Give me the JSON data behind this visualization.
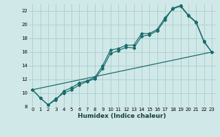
{
  "title": "",
  "xlabel": "Humidex (Indice chaleur)",
  "background_color": "#d0e8e8",
  "grid_color": "#b0d0d0",
  "line_color": "#1a6b6b",
  "xlim": [
    -0.5,
    23.5
  ],
  "ylim": [
    8,
    23
  ],
  "xticks": [
    0,
    1,
    2,
    3,
    4,
    5,
    6,
    7,
    8,
    9,
    10,
    11,
    12,
    13,
    14,
    15,
    16,
    17,
    18,
    19,
    20,
    21,
    22,
    23
  ],
  "yticks": [
    8,
    10,
    12,
    14,
    16,
    18,
    20,
    22
  ],
  "series1_x": [
    0,
    1,
    2,
    3,
    4,
    5,
    6,
    7,
    8,
    9,
    10,
    11,
    12,
    13,
    14,
    15,
    16,
    17,
    18,
    19,
    20,
    21,
    22,
    23
  ],
  "series1_y": [
    10.5,
    9.3,
    8.3,
    9.0,
    10.3,
    10.8,
    11.5,
    11.8,
    12.3,
    14.0,
    16.3,
    16.5,
    17.0,
    17.0,
    18.7,
    18.7,
    19.3,
    21.0,
    22.3,
    22.7,
    21.3,
    20.3,
    17.5,
    16.0
  ],
  "series2_x": [
    0,
    1,
    2,
    3,
    4,
    5,
    6,
    7,
    8,
    9,
    10,
    11,
    12,
    13,
    14,
    15,
    16,
    17,
    18,
    19,
    20,
    21,
    22,
    23
  ],
  "series2_y": [
    10.5,
    9.3,
    8.3,
    9.2,
    10.0,
    10.5,
    11.2,
    11.7,
    12.1,
    13.6,
    15.8,
    16.2,
    16.7,
    16.6,
    18.3,
    18.5,
    19.1,
    20.7,
    22.4,
    22.8,
    21.4,
    20.4,
    17.6,
    16.0
  ],
  "series3_x": [
    0,
    23
  ],
  "series3_y": [
    10.5,
    16.0
  ]
}
